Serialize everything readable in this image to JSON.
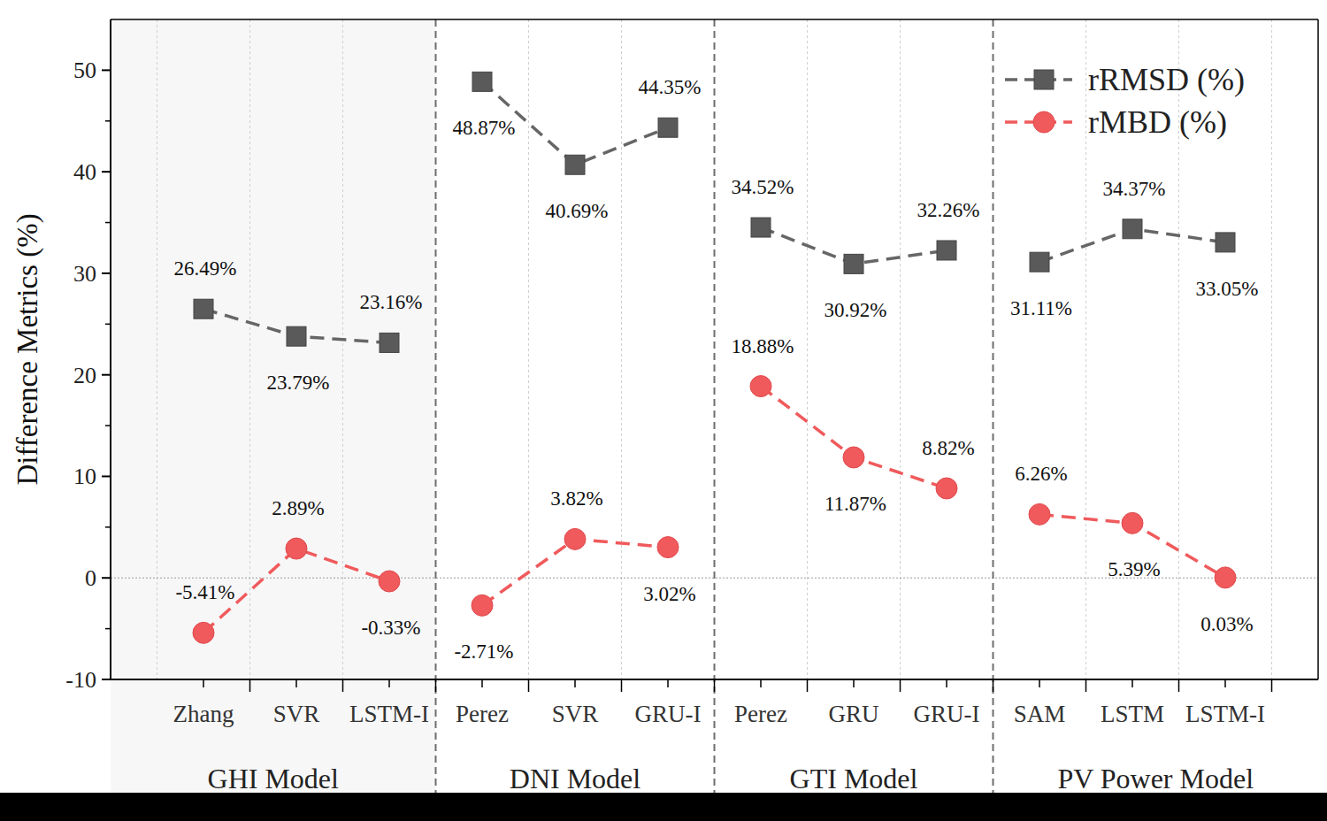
{
  "chart_data": {
    "type": "line",
    "ylabel": "Difference Metrics (%)",
    "categories": [
      "Zhang",
      "SVR",
      "LSTM-I",
      "Perez",
      "SVR",
      "GRU-I",
      "Perez",
      "GRU",
      "GRU-I",
      "SAM",
      "LSTM",
      "LSTM-I"
    ],
    "groups": [
      {
        "label": "GHI Model",
        "size": 3
      },
      {
        "label": "DNI Model",
        "size": 3
      },
      {
        "label": "GTI Model",
        "size": 3
      },
      {
        "label": "PV Power Model",
        "size": 3
      }
    ],
    "series": [
      {
        "name": "rRMSD (%)",
        "color": "#5a5a5a",
        "marker": "square",
        "line_style": "dashed",
        "values": [
          26.49,
          23.79,
          23.16,
          48.87,
          40.69,
          44.35,
          34.52,
          30.92,
          32.26,
          31.11,
          34.37,
          33.05
        ],
        "value_labels": [
          "26.49%",
          "23.79%",
          "23.16%",
          "48.87%",
          "40.69%",
          "44.35%",
          "34.52%",
          "30.92%",
          "32.26%",
          "31.11%",
          "34.37%",
          "33.05%"
        ]
      },
      {
        "name": "rMBD (%)",
        "color": "#f05a5c",
        "marker": "circle",
        "line_style": "dashed",
        "values": [
          -5.41,
          2.89,
          -0.33,
          -2.71,
          3.82,
          3.02,
          18.88,
          11.87,
          8.82,
          6.26,
          5.39,
          0.03
        ],
        "value_labels": [
          "-5.41%",
          "2.89%",
          "-0.33%",
          "-2.71%",
          "3.82%",
          "3.02%",
          "18.88%",
          "11.87%",
          "8.82%",
          "6.26%",
          "5.39%",
          "0.03%"
        ]
      }
    ],
    "ylim": [
      -10,
      55
    ],
    "yticks": [
      -10,
      0,
      10,
      20,
      30,
      40,
      50
    ],
    "grid": true,
    "legend": "upper right",
    "data_labels": true
  }
}
